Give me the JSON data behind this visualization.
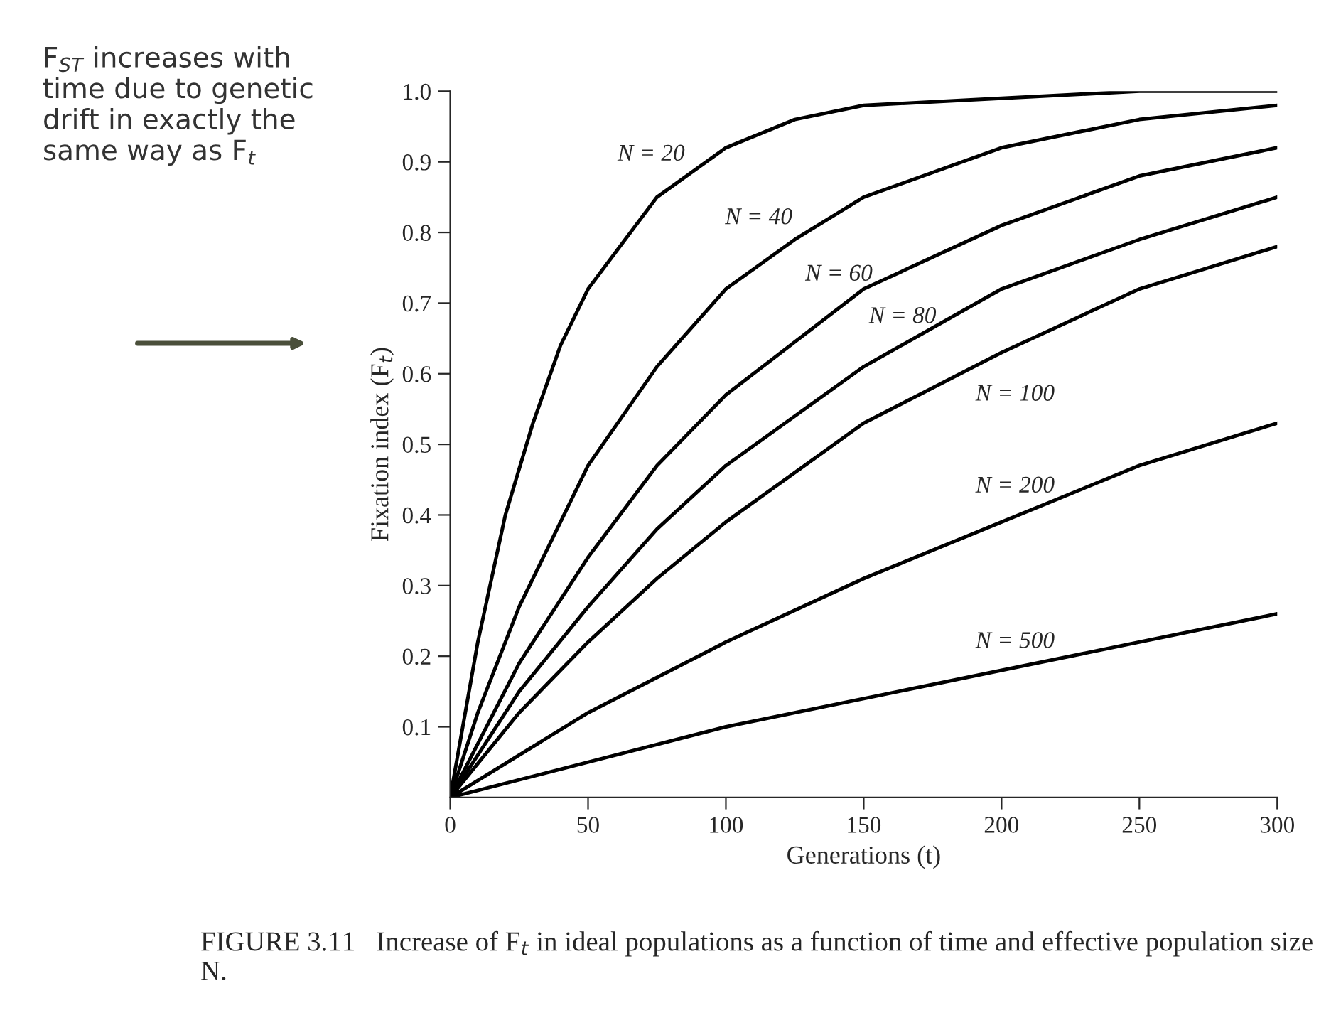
{
  "chart_data": {
    "type": "line",
    "xlabel": "Generations (t)",
    "ylabel": "Fixation index (F$_{t}$)",
    "xlim": [
      0,
      300
    ],
    "xticks": [
      0,
      50,
      100,
      150,
      200,
      250,
      300
    ],
    "ylim": [
      0,
      1.0
    ],
    "yticks": [
      0.1,
      0.2,
      0.3,
      0.4,
      0.5,
      0.6,
      0.7,
      0.8,
      0.9,
      {
        "value": 1.0,
        "label": "1.0"
      }
    ],
    "grid": false,
    "marker": "none",
    "line_style": "solid",
    "series": [
      {
        "color": "#000000",
        "x": [
          0,
          10,
          20,
          30,
          40,
          50,
          75,
          100,
          125,
          150,
          200,
          250,
          300
        ],
        "values": [
          0,
          0.22,
          0.4,
          0.53,
          0.64,
          0.72,
          0.85,
          0.92,
          0.96,
          0.98,
          0.99,
          1.0,
          1.0
        ]
      },
      {
        "color": "#000000",
        "x": [
          0,
          10,
          25,
          50,
          75,
          100,
          125,
          150,
          200,
          250,
          300
        ],
        "values": [
          0,
          0.12,
          0.27,
          0.47,
          0.61,
          0.72,
          0.79,
          0.85,
          0.92,
          0.96,
          0.98
        ]
      },
      {
        "color": "#000000",
        "x": [
          0,
          25,
          50,
          75,
          100,
          150,
          200,
          250,
          300
        ],
        "values": [
          0,
          0.19,
          0.34,
          0.47,
          0.57,
          0.72,
          0.81,
          0.88,
          0.92
        ]
      },
      {
        "color": "#000000",
        "x": [
          0,
          25,
          50,
          75,
          100,
          150,
          200,
          250,
          300
        ],
        "values": [
          0,
          0.15,
          0.27,
          0.38,
          0.47,
          0.61,
          0.72,
          0.79,
          0.85
        ]
      },
      {
        "color": "#000000",
        "x": [
          0,
          25,
          50,
          75,
          100,
          150,
          200,
          250,
          300
        ],
        "values": [
          0,
          0.12,
          0.22,
          0.31,
          0.39,
          0.53,
          0.63,
          0.72,
          0.78
        ]
      },
      {
        "color": "#000000",
        "x": [
          0,
          50,
          100,
          150,
          200,
          250,
          300
        ],
        "values": [
          0,
          0.12,
          0.22,
          0.31,
          0.39,
          0.47,
          0.53
        ]
      },
      {
        "color": "#000000",
        "x": [
          0,
          100,
          200,
          300
        ],
        "values": [
          0,
          0.1,
          0.18,
          0.26
        ]
      }
    ],
    "annotations": [
      "N = 20",
      "N = 40",
      "N = 60",
      "N = 80",
      "N = 100",
      "N = 200",
      "N = 500",
      "F$_{ST}$ increases with time due to genetic drift in exactly the same way as F$_{t}$",
      "FIGURE 3.11   Increase of F$_{t}$ in ideal populations as a function of time and effective population size N."
    ]
  }
}
